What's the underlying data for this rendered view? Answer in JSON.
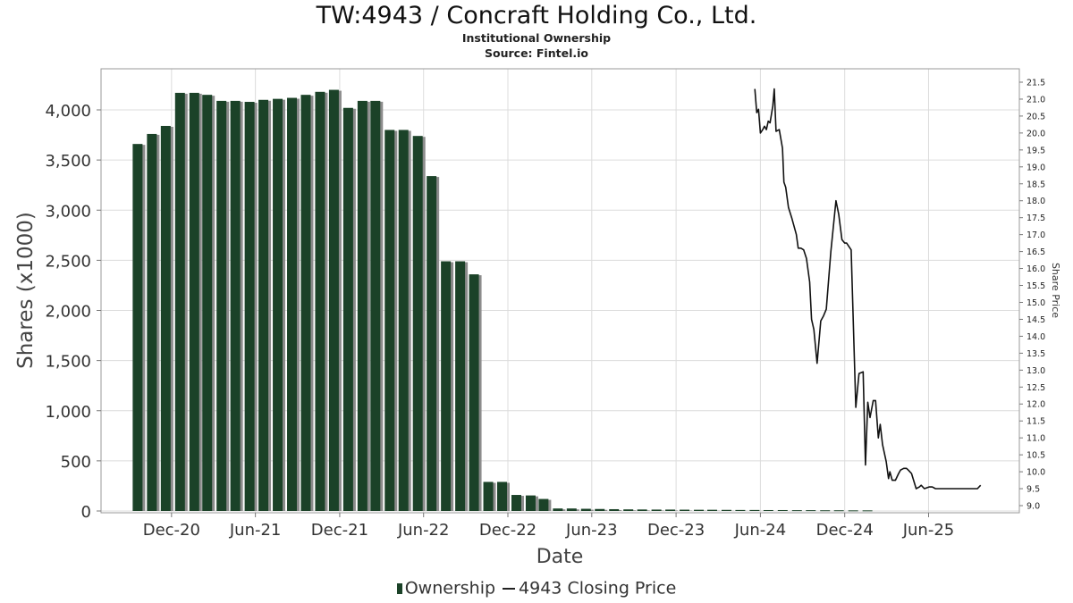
{
  "title": "TW:4943 / Concraft Holding Co., Ltd.",
  "subtitle_1": "Institutional Ownership",
  "subtitle_2": "Source: Fintel.io",
  "legend": {
    "bar_label": "Ownership",
    "line_label": "4943 Closing Price"
  },
  "colors": {
    "bar": "#1b4228",
    "bar_shadow": "#8c8c8c",
    "line": "#111111",
    "grid": "#dcdcdc"
  },
  "chart_data": {
    "type": "bar",
    "xlabel": "Date",
    "ylabel": "Shares (x1000)",
    "y2label": "Share Price",
    "ylim": [
      0,
      4400
    ],
    "y2lim": [
      8.85,
      21.78
    ],
    "xlim": [
      "2020-07-01",
      "2025-12-15"
    ],
    "yticks": [
      0,
      500,
      1000,
      1500,
      2000,
      2500,
      3000,
      3500,
      4000
    ],
    "ytick_labels": [
      "0",
      "500",
      "1,000",
      "1,500",
      "2,000",
      "2,500",
      "3,000",
      "3,500",
      "4,000"
    ],
    "y2ticks": [
      9.0,
      9.5,
      10.0,
      10.5,
      11.0,
      11.5,
      12.0,
      12.5,
      13.0,
      13.5,
      14.0,
      14.5,
      15.0,
      15.5,
      16.0,
      16.5,
      17.0,
      17.5,
      18.0,
      18.5,
      19.0,
      19.5,
      20.0,
      20.5,
      21.0,
      21.5
    ],
    "y2tick_labels": [
      "9.0",
      "9.5",
      "10.0",
      "10.5",
      "11.0",
      "11.5",
      "12.0",
      "12.5",
      "13.0",
      "13.5",
      "14.0",
      "14.5",
      "15.0",
      "15.5",
      "16.0",
      "16.5",
      "17.0",
      "17.5",
      "18.0",
      "18.5",
      "19.0",
      "19.5",
      "20.0",
      "20.5",
      "21.0",
      "21.5"
    ],
    "xticks": [
      {
        "date": "2020-12-01",
        "label": "Dec-20"
      },
      {
        "date": "2021-06-01",
        "label": "Jun-21"
      },
      {
        "date": "2021-12-01",
        "label": "Dec-21"
      },
      {
        "date": "2022-06-01",
        "label": "Jun-22"
      },
      {
        "date": "2022-12-01",
        "label": "Dec-22"
      },
      {
        "date": "2023-06-01",
        "label": "Jun-23"
      },
      {
        "date": "2023-12-01",
        "label": "Dec-23"
      },
      {
        "date": "2024-06-01",
        "label": "Jun-24"
      },
      {
        "date": "2024-12-01",
        "label": "Dec-24"
      },
      {
        "date": "2025-06-01",
        "label": "Jun-25"
      }
    ],
    "grid": true,
    "legend_position": "bottom-center",
    "series": [
      {
        "name": "Ownership",
        "type": "bar",
        "axis": "left",
        "x": [
          "2020-09-30",
          "2020-10-31",
          "2020-11-30",
          "2020-12-31",
          "2021-01-31",
          "2021-02-28",
          "2021-03-31",
          "2021-04-30",
          "2021-05-31",
          "2021-06-30",
          "2021-07-31",
          "2021-08-31",
          "2021-09-30",
          "2021-10-31",
          "2021-11-30",
          "2021-12-31",
          "2022-01-31",
          "2022-02-28",
          "2022-03-31",
          "2022-04-30",
          "2022-05-31",
          "2022-06-30",
          "2022-07-31",
          "2022-08-31",
          "2022-09-30",
          "2022-10-31",
          "2022-11-30",
          "2022-12-31",
          "2023-01-31",
          "2023-02-28",
          "2023-03-31",
          "2023-04-30",
          "2023-05-31",
          "2023-06-30",
          "2023-07-31",
          "2023-08-31",
          "2023-09-30",
          "2023-10-31",
          "2023-11-30",
          "2023-12-31",
          "2024-01-31",
          "2024-02-29",
          "2024-03-31",
          "2024-04-30",
          "2024-05-31",
          "2024-06-30",
          "2024-07-31",
          "2024-08-31",
          "2024-09-30",
          "2024-10-31",
          "2024-11-30",
          "2024-12-31",
          "2025-01-31"
        ],
        "values": [
          3660,
          3760,
          3840,
          4170,
          4170,
          4150,
          4090,
          4090,
          4080,
          4100,
          4110,
          4120,
          4150,
          4180,
          4200,
          4020,
          4090,
          4090,
          3800,
          3800,
          3740,
          3340,
          2490,
          2490,
          2360,
          290,
          290,
          160,
          155,
          120,
          25,
          25,
          22,
          20,
          18,
          16,
          15,
          14,
          14,
          13,
          12,
          12,
          11,
          10,
          10,
          9,
          9,
          8,
          8,
          7,
          7,
          6,
          6
        ]
      },
      {
        "name": "4943 Closing Price",
        "type": "line",
        "axis": "right",
        "x": [
          "2024-05-20",
          "2024-05-24",
          "2024-05-28",
          "2024-06-01",
          "2024-06-06",
          "2024-06-10",
          "2024-06-14",
          "2024-06-18",
          "2024-06-22",
          "2024-06-28",
          "2024-07-01",
          "2024-07-05",
          "2024-07-12",
          "2024-07-19",
          "2024-07-22",
          "2024-07-26",
          "2024-08-01",
          "2024-08-08",
          "2024-08-12",
          "2024-08-18",
          "2024-08-22",
          "2024-08-28",
          "2024-09-03",
          "2024-09-09",
          "2024-09-16",
          "2024-09-20",
          "2024-09-25",
          "2024-10-02",
          "2024-10-10",
          "2024-10-16",
          "2024-10-22",
          "2024-11-01",
          "2024-11-12",
          "2024-11-18",
          "2024-11-25",
          "2024-12-01",
          "2024-12-05",
          "2024-12-15",
          "2024-12-25",
          "2025-01-01",
          "2025-01-10",
          "2025-01-15",
          "2025-01-20",
          "2025-01-25",
          "2025-02-01",
          "2025-02-06",
          "2025-02-12",
          "2025-02-16",
          "2025-02-21",
          "2025-03-01",
          "2025-03-06",
          "2025-03-09",
          "2025-03-14",
          "2025-03-21",
          "2025-03-28",
          "2025-04-01",
          "2025-04-08",
          "2025-04-14",
          "2025-04-18",
          "2025-04-25",
          "2025-05-05",
          "2025-05-12",
          "2025-05-16",
          "2025-05-23",
          "2025-06-02",
          "2025-06-09",
          "2025-06-16",
          "2025-06-23",
          "2025-06-30",
          "2025-07-07",
          "2025-07-14",
          "2025-07-21",
          "2025-07-28",
          "2025-08-04",
          "2025-08-11",
          "2025-08-18",
          "2025-08-25",
          "2025-09-01",
          "2025-09-08",
          "2025-09-15",
          "2025-09-22"
        ],
        "values": [
          21.3,
          20.6,
          20.7,
          20.0,
          20.1,
          20.2,
          20.1,
          20.35,
          20.3,
          20.8,
          21.3,
          20.05,
          20.1,
          19.55,
          18.55,
          18.4,
          17.8,
          17.5,
          17.3,
          17.0,
          16.6,
          16.6,
          16.55,
          16.3,
          15.6,
          14.5,
          14.2,
          13.2,
          14.45,
          14.6,
          14.8,
          16.5,
          18.0,
          17.6,
          16.85,
          16.75,
          16.75,
          16.55,
          11.9,
          12.9,
          12.95,
          10.2,
          12.05,
          11.6,
          12.1,
          12.1,
          11.0,
          11.4,
          10.8,
          10.3,
          9.8,
          10.0,
          9.75,
          9.75,
          9.95,
          10.05,
          10.1,
          10.1,
          10.05,
          9.95,
          9.5,
          9.55,
          9.6,
          9.5,
          9.55,
          9.55,
          9.5,
          9.5,
          9.5,
          9.5,
          9.5,
          9.5,
          9.5,
          9.5,
          9.5,
          9.5,
          9.5,
          9.5,
          9.5,
          9.5,
          9.6
        ]
      }
    ]
  }
}
